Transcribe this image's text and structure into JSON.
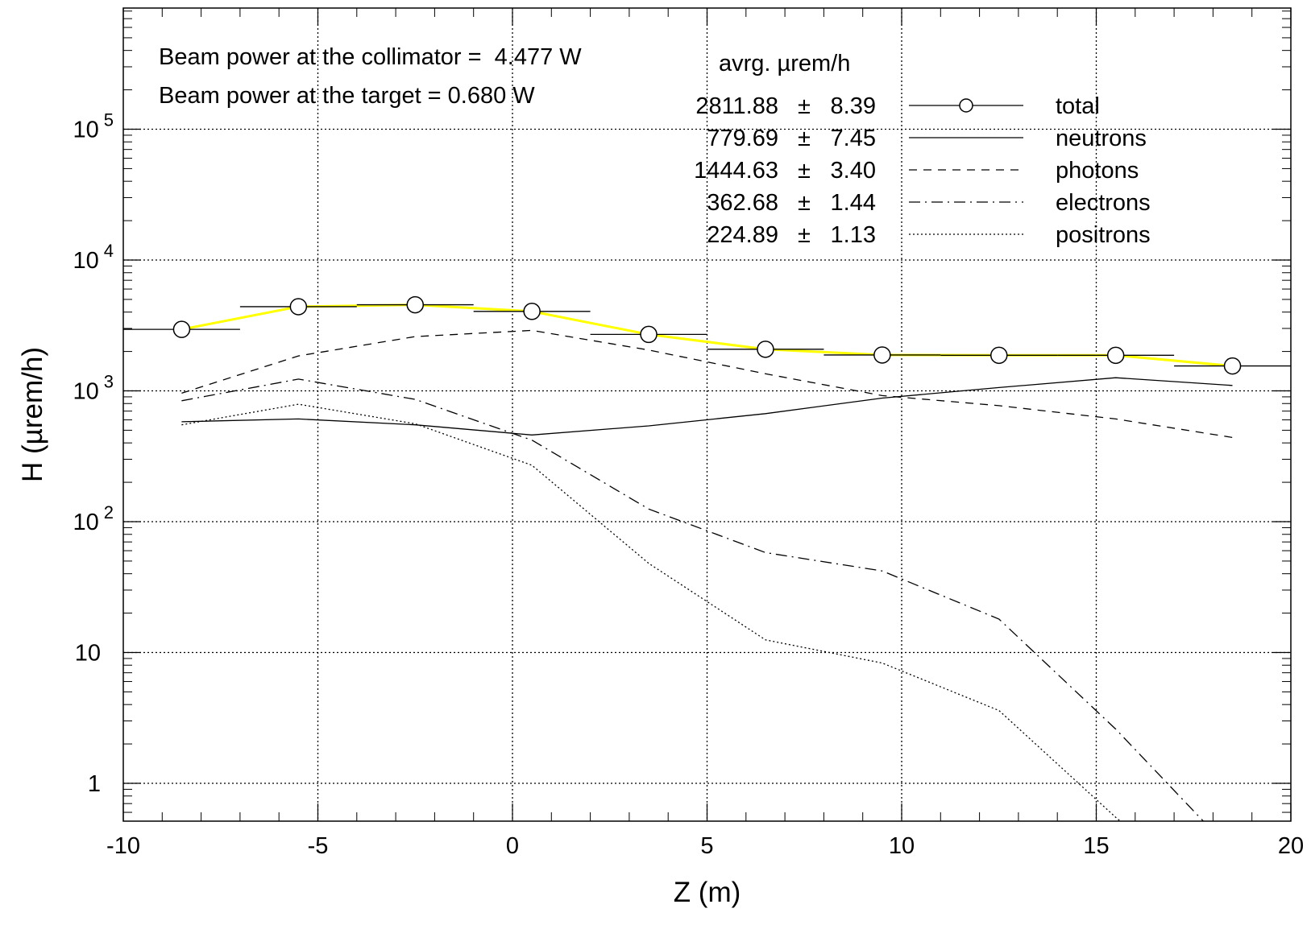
{
  "chart_data": {
    "type": "line",
    "xlabel": "Z (m)",
    "ylabel": "H (µrem/h)",
    "xlim": [
      -10,
      20
    ],
    "ylim": [
      0.5,
      1000000
    ],
    "yscale": "log",
    "grid": true,
    "x_ticks": [
      "-10",
      "-5",
      "0",
      "5",
      "10",
      "15",
      "20"
    ],
    "y_ticks": [
      {
        "value": 1,
        "base": "1",
        "exp": ""
      },
      {
        "value": 10,
        "base": "10",
        "exp": ""
      },
      {
        "value": 100,
        "base": "10",
        "exp": "2"
      },
      {
        "value": 1000,
        "base": "10",
        "exp": "3"
      },
      {
        "value": 10000,
        "base": "10",
        "exp": "4"
      },
      {
        "value": 100000,
        "base": "10",
        "exp": "5"
      }
    ],
    "annotations": {
      "collimator": "Beam power at the collimator =  4.477 W",
      "target": "Beam power at the target = 0.680 W"
    },
    "legend": {
      "header": "avrg. µrem/h",
      "placement": "top-right",
      "entries": [
        {
          "value": "2811.88",
          "pm": "±",
          "err": "8.39",
          "label": "total"
        },
        {
          "value": "779.69",
          "pm": "±",
          "err": "7.45",
          "label": "neutrons"
        },
        {
          "value": "1444.63",
          "pm": "±",
          "err": "3.40",
          "label": "photons"
        },
        {
          "value": "362.68",
          "pm": "±",
          "err": "1.44",
          "label": "electrons"
        },
        {
          "value": "224.89",
          "pm": "±",
          "err": "1.13",
          "label": "positrons"
        }
      ]
    },
    "bin_half_width": 1.5,
    "series": [
      {
        "name": "total",
        "style": "circle-marker-with-horizontal-bars",
        "line_color": "#ffff00",
        "x": [
          -8.5,
          -5.5,
          -2.5,
          0.5,
          3.5,
          6.5,
          9.5,
          12.5,
          15.5,
          18.5
        ],
        "y": [
          2950,
          4400,
          4550,
          4050,
          2700,
          2080,
          1880,
          1870,
          1870,
          1550
        ]
      },
      {
        "name": "neutrons",
        "style": "solid",
        "x": [
          -8.5,
          -5.5,
          -2.5,
          0.5,
          3.5,
          6.5,
          9.5,
          12.5,
          15.5,
          18.5
        ],
        "y": [
          580,
          610,
          550,
          460,
          540,
          670,
          880,
          1060,
          1260,
          1100
        ]
      },
      {
        "name": "photons",
        "style": "dashed",
        "x": [
          -8.5,
          -5.5,
          -2.5,
          0.5,
          3.5,
          6.5,
          9.5,
          12.5,
          15.5,
          18.5
        ],
        "y": [
          960,
          1850,
          2600,
          2900,
          2050,
          1350,
          920,
          770,
          610,
          440
        ]
      },
      {
        "name": "electrons",
        "style": "dash-dot",
        "x": [
          -8.5,
          -5.5,
          -2.5,
          0.5,
          3.5,
          6.5,
          9.5,
          12.5,
          15.5,
          18.5
        ],
        "y": [
          840,
          1230,
          860,
          420,
          125,
          58,
          42,
          18,
          2.6,
          0.3
        ]
      },
      {
        "name": "positrons",
        "style": "dotted",
        "x": [
          -8.5,
          -5.5,
          -2.5,
          0.5,
          3.5,
          6.5,
          9.5,
          12.5,
          15.5,
          18.5
        ],
        "y": [
          550,
          790,
          560,
          270,
          48,
          12.5,
          8.3,
          3.6,
          0.55,
          0.1
        ]
      }
    ]
  }
}
